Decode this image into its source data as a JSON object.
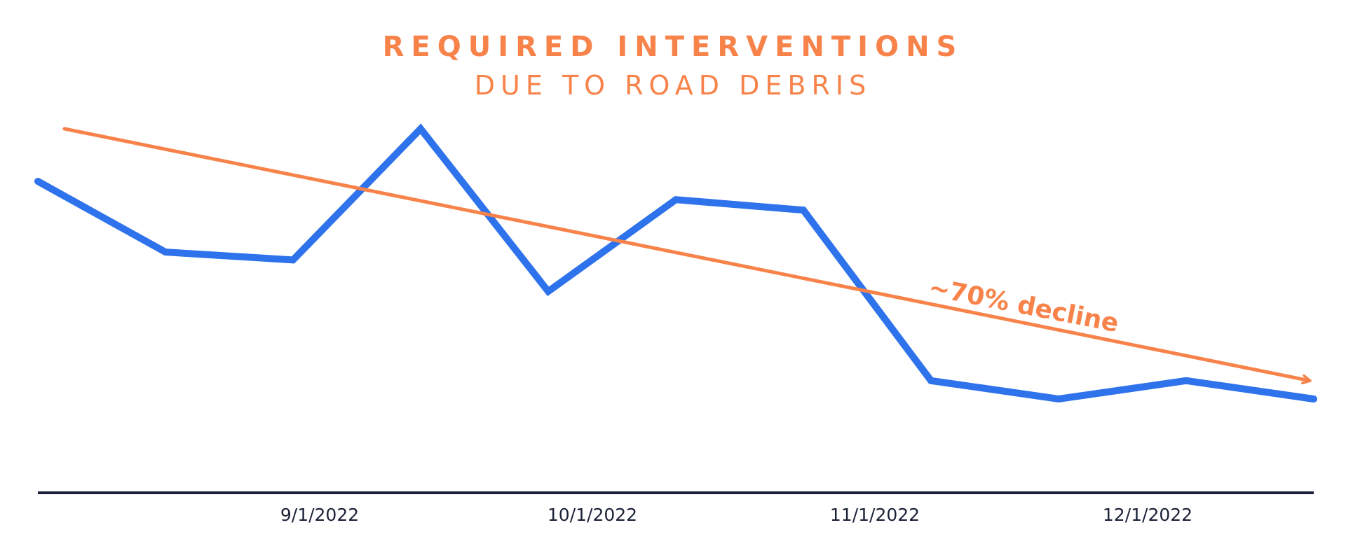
{
  "chart_data": {
    "type": "line",
    "title": "REQUIRED INTERVENTIONS",
    "subtitle": "DUE TO ROAD DEBRIS",
    "x_tick_labels": [
      "9/1/2022",
      "10/1/2022",
      "11/1/2022",
      "12/1/2022"
    ],
    "y_axis_labeled": false,
    "grid": false,
    "series": [
      {
        "values": [
          0.8,
          0.53,
          0.5,
          1.0,
          0.38,
          0.73,
          0.69,
          0.04,
          -0.03,
          0.04,
          -0.03
        ]
      }
    ],
    "trend_line": {
      "start": 1.0,
      "end": 0.04,
      "arrow": true
    },
    "annotation": "~70% decline",
    "colors": {
      "series": "#2e72ec",
      "trend": "#f7834a",
      "axis": "#1b2238",
      "title": "#f7834a"
    }
  }
}
